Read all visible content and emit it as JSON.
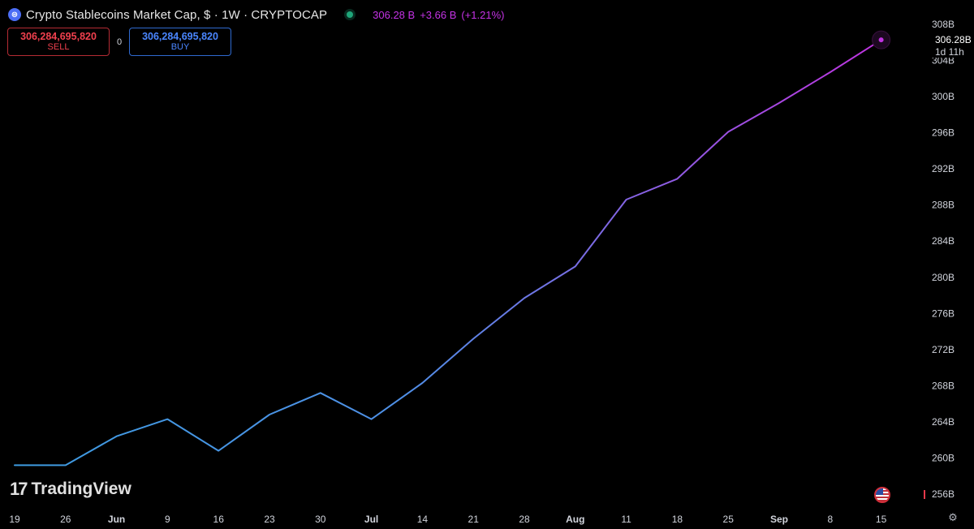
{
  "header": {
    "title": "Crypto Stablecoins Market Cap, $ · 1W · CRYPTOCAP",
    "last_price": "306.28 B",
    "change": "+3.66 B",
    "change_pct": "(+1.21%)"
  },
  "trade": {
    "sell_value": "306,284,695,820",
    "sell_label": "SELL",
    "spread": "0",
    "buy_value": "306,284,695,820",
    "buy_label": "BUY"
  },
  "price_tag": {
    "value": "306.28B",
    "countdown": "1d 11h"
  },
  "branding": {
    "logo_text": "TradingView"
  },
  "icons": {
    "coin": "stablecoin-icon",
    "status": "market-open-dot-icon",
    "flag": "us-flag-icon",
    "settings": "gear-icon"
  },
  "colors": {
    "line_start": "#3d9be0",
    "line_end": "#c033e0",
    "price_text": "#c533e6",
    "sell": "#f0404e",
    "buy": "#4a86ff",
    "background": "#000000"
  },
  "chart_data": {
    "type": "line",
    "title": "Crypto Stablecoins Market Cap",
    "ylabel": "",
    "xlabel": "",
    "ylim": [
      254.5,
      309.5
    ],
    "y_ticks": [
      "256B",
      "260B",
      "264B",
      "268B",
      "272B",
      "276B",
      "280B",
      "284B",
      "288B",
      "292B",
      "296B",
      "300B",
      "304B",
      "308B"
    ],
    "y_tick_values": [
      256,
      260,
      264,
      268,
      272,
      276,
      280,
      284,
      288,
      292,
      296,
      300,
      304,
      308
    ],
    "x_ticks": [
      "19",
      "26",
      "Jun",
      "9",
      "16",
      "23",
      "30",
      "Jul",
      "14",
      "21",
      "28",
      "Aug",
      "11",
      "18",
      "25",
      "Sep",
      "8",
      "15"
    ],
    "x_tick_bold": [
      false,
      false,
      true,
      false,
      false,
      false,
      false,
      true,
      false,
      false,
      false,
      true,
      false,
      false,
      false,
      true,
      false,
      false
    ],
    "series": [
      {
        "values": [
          259.2,
          259.2,
          262.4,
          264.3,
          260.8,
          264.8,
          267.2,
          264.3,
          268.3,
          273.2,
          277.7,
          281.2,
          288.6,
          290.9,
          296.1,
          299.3,
          302.7,
          306.28
        ]
      }
    ]
  }
}
